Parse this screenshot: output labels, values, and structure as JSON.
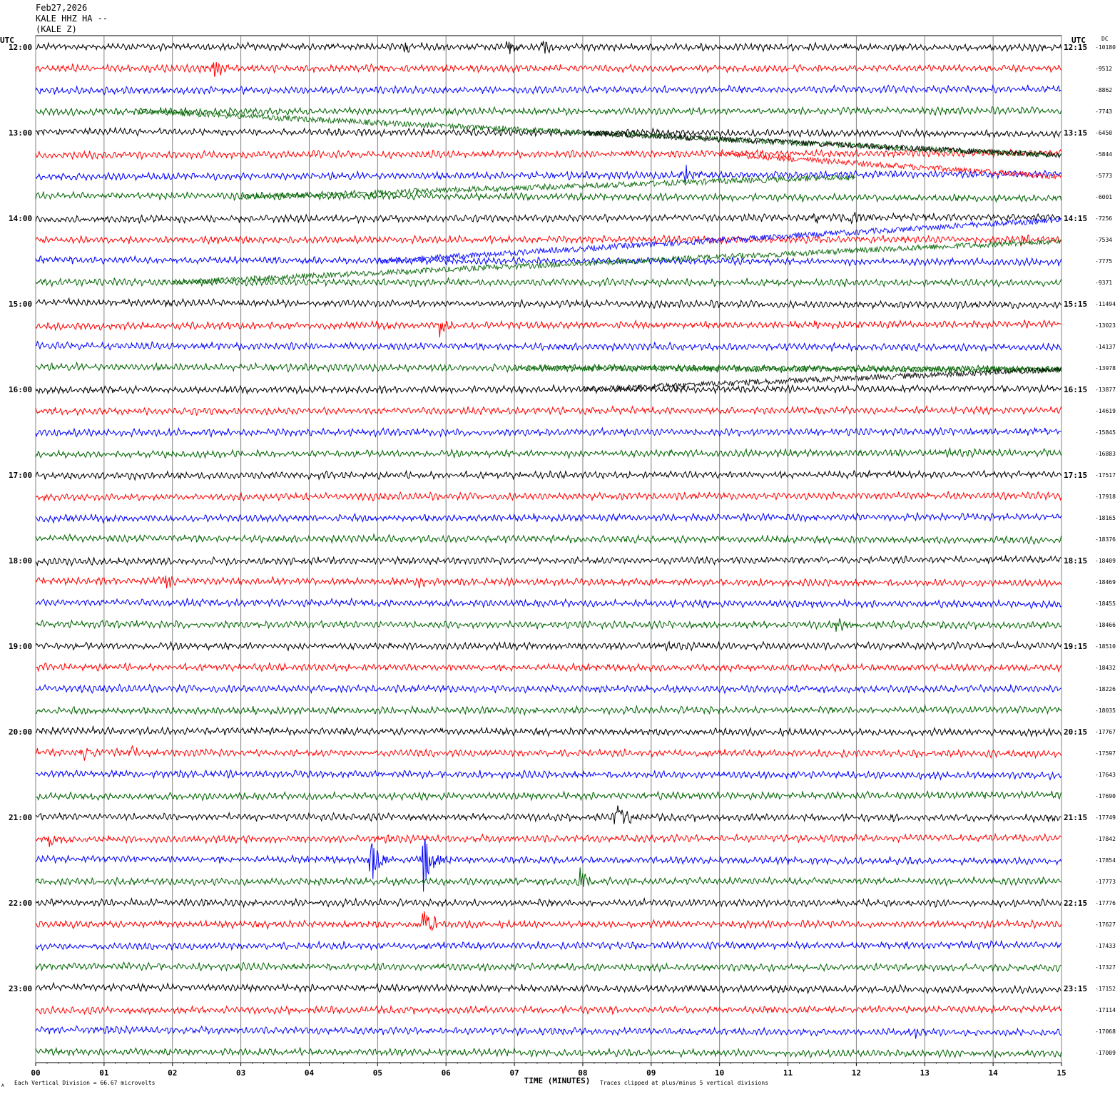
{
  "header": {
    "date": "Feb27,2026",
    "station": "KALE HHZ HA --",
    "component": "(KALE Z)"
  },
  "left_axis_title": "UTC",
  "right_axis_title": "UTC",
  "dc_title": "DC",
  "footer": {
    "scale_note": "Each Vertical Division =   66.67 microvolts",
    "clip_note": "Traces clipped at plus/minus 5 vertical divisions",
    "corner_mark": "A"
  },
  "chart_data": {
    "type": "line",
    "title": "",
    "xlabel": "TIME (MINUTES)",
    "xlim": [
      0,
      15
    ],
    "x_ticks": [
      "00",
      "01",
      "02",
      "03",
      "04",
      "05",
      "06",
      "07",
      "08",
      "09",
      "10",
      "11",
      "12",
      "13",
      "14",
      "15"
    ],
    "trace_minutes": 15,
    "trace_colors": [
      "#000000",
      "#ff0000",
      "#0000ff",
      "#006400"
    ],
    "grid_vertical": true,
    "left_hour_labels": [
      "12:00",
      "13:00",
      "14:00",
      "15:00",
      "16:00",
      "17:00",
      "18:00",
      "19:00",
      "20:00",
      "21:00",
      "22:00",
      "23:00"
    ],
    "right_hour_labels": [
      "12:15",
      "13:15",
      "14:15",
      "15:15",
      "16:15",
      "17:15",
      "18:15",
      "19:15",
      "20:15",
      "21:15",
      "22:15",
      "23:15"
    ],
    "dc_offsets": [
      "-10180",
      "-9512",
      "-8862",
      "-7743",
      "-6450",
      "-5844",
      "-5773",
      "-6001",
      "-7256",
      "-7534",
      "-7775",
      "-9371",
      "-11494",
      "-13023",
      "-14137",
      "-13978",
      "-13877",
      "-14619",
      "-15845",
      "-16883",
      "-17517",
      "-17918",
      "-18165",
      "-18376",
      "-18409",
      "-18469",
      "-18455",
      "-18466",
      "-18510",
      "-18432",
      "-18226",
      "-18035",
      "-17767",
      "-17597",
      "-17643",
      "-17690",
      "-17749",
      "-17842",
      "-17854",
      "-17773",
      "-17776",
      "-17627",
      "-17433",
      "-17327",
      "-17152",
      "-17114",
      "-17068",
      "-17009"
    ],
    "events": [
      {
        "trace": 0,
        "minute": 5.4,
        "amp": 9
      },
      {
        "trace": 0,
        "minute": 6.9,
        "amp": 14
      },
      {
        "trace": 0,
        "minute": 7.4,
        "amp": 12
      },
      {
        "trace": 1,
        "minute": 2.6,
        "amp": 14
      },
      {
        "trace": 6,
        "minute": 9.5,
        "amp": 14
      },
      {
        "trace": 8,
        "minute": 11.4,
        "amp": 12
      },
      {
        "trace": 8,
        "minute": 11.85,
        "amp": 14
      },
      {
        "trace": 9,
        "minute": 14.4,
        "amp": 14
      },
      {
        "trace": 13,
        "minute": 5.9,
        "amp": 14
      },
      {
        "trace": 25,
        "minute": 1.85,
        "amp": 16
      },
      {
        "trace": 25,
        "minute": 5.6,
        "amp": 10
      },
      {
        "trace": 27,
        "minute": 11.7,
        "amp": 14
      },
      {
        "trace": 33,
        "minute": 0.7,
        "amp": 12
      },
      {
        "trace": 33,
        "minute": 1.4,
        "amp": 10
      },
      {
        "trace": 36,
        "minute": 8.5,
        "amp": 22
      },
      {
        "trace": 37,
        "minute": 0.2,
        "amp": 12
      },
      {
        "trace": 38,
        "minute": 4.9,
        "amp": 40
      },
      {
        "trace": 38,
        "minute": 5.65,
        "amp": 52
      },
      {
        "trace": 39,
        "minute": 7.95,
        "amp": 22
      },
      {
        "trace": 41,
        "minute": 5.65,
        "amp": 26
      },
      {
        "trace": 46,
        "minute": 12.85,
        "amp": 10
      }
    ],
    "crossing_lines": [
      {
        "from_trace": 3,
        "to_trace": 5,
        "minute_start": 1.5,
        "minute_end": 15
      },
      {
        "from_trace": 4,
        "to_trace": 5,
        "minute_start": 8,
        "minute_end": 15
      },
      {
        "from_trace": 5,
        "to_trace": 6,
        "minute_start": 10,
        "minute_end": 15
      },
      {
        "from_trace": 7,
        "to_trace": 6,
        "minute_start": 3,
        "minute_end": 12
      },
      {
        "from_trace": 10,
        "to_trace": 8,
        "minute_start": 5,
        "minute_end": 15
      },
      {
        "from_trace": 11,
        "to_trace": 9,
        "minute_start": 2,
        "minute_end": 15
      },
      {
        "from_trace": 15,
        "to_trace": 15,
        "minute_start": 7,
        "minute_end": 15
      },
      {
        "from_trace": 16,
        "to_trace": 15,
        "minute_start": 8,
        "minute_end": 15
      }
    ]
  }
}
